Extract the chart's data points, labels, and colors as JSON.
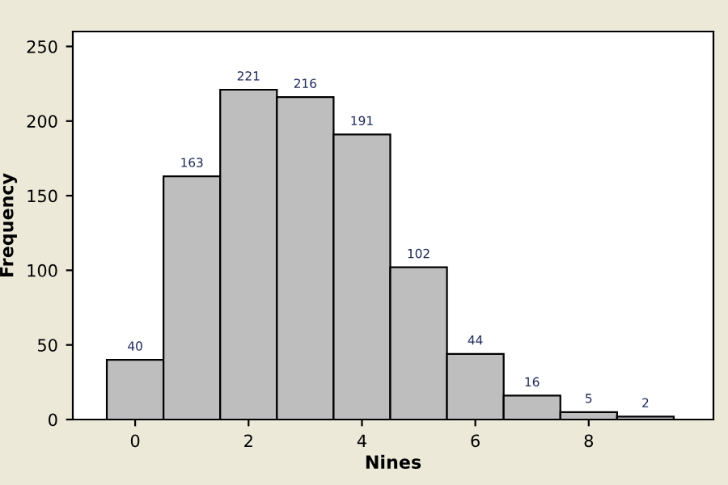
{
  "chart_data": {
    "type": "histogram",
    "xlabel": "Nines",
    "ylabel": "Frequency",
    "bins": [
      -0.5,
      0.5,
      1.5,
      2.5,
      3.5,
      4.5,
      5.5,
      6.5,
      7.5,
      8.5,
      9.5
    ],
    "values": [
      40,
      163,
      221,
      216,
      191,
      102,
      44,
      16,
      5,
      2
    ],
    "color": "#bebebe",
    "xlim": [
      -1.1,
      10.2
    ],
    "xticks": [
      0,
      2,
      4,
      6,
      8
    ],
    "ylim": [
      0,
      260
    ],
    "yticks": [
      0,
      50,
      100,
      150,
      200,
      250
    ],
    "data_labels": true,
    "grid": false,
    "legend": false
  }
}
